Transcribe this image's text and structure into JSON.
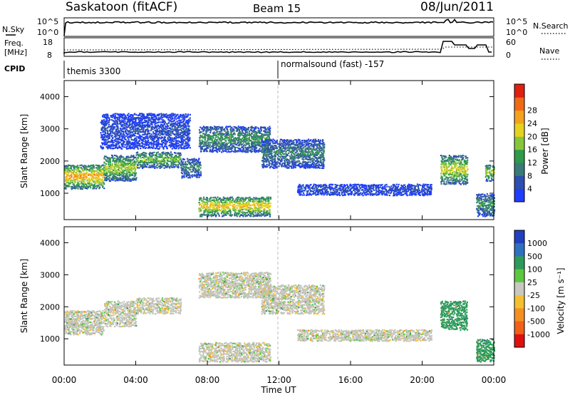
{
  "header": {
    "station": "Saskatoon (fitACF)",
    "beam": "Beam 15",
    "date": "08/Jun/2011"
  },
  "noise_panel": {
    "left_label": "N.Sky",
    "left_ticks": [
      "10^5",
      "10^0"
    ],
    "right_ticks": [
      "10^5",
      "10^0"
    ],
    "right_label": "N.Search"
  },
  "freq_panel": {
    "left_label_line1": "Freq.",
    "left_label_line2": "[MHz]",
    "left_ticks": [
      "18",
      "8"
    ],
    "right_ticks": [
      "60",
      "0"
    ],
    "right_label": "Nave"
  },
  "cpid": {
    "label": "CPID",
    "entries": [
      {
        "text": "themis 3300",
        "time_h": 0.1
      },
      {
        "text": "normalsound (fast) -157",
        "time_h": 12.0
      }
    ]
  },
  "chart_data": [
    {
      "type": "heatmap",
      "quantity": "Power",
      "ylabel": "Slant Range [km]",
      "ylim": [
        180,
        4500
      ],
      "yticks": [
        "1000",
        "2000",
        "3000",
        "4000"
      ],
      "xlim": [
        0,
        24
      ],
      "colorbar": {
        "label": "Power [dB]",
        "ticks": [
          "4",
          "8",
          "12",
          "16",
          "20",
          "24",
          "28"
        ],
        "colors": [
          "#1f3dff",
          "#2c4fb0",
          "#3a7a78",
          "#2e9a4a",
          "#86c63c",
          "#e6d21e",
          "#f4a21c",
          "#f06a16",
          "#e02010"
        ]
      },
      "echo_regions": [
        {
          "t0": 0.0,
          "t1": 2.2,
          "r0": 1150,
          "r1": 1900,
          "core": 24
        },
        {
          "t0": 2.2,
          "t1": 4.0,
          "r0": 1400,
          "r1": 2200,
          "core": 18
        },
        {
          "t0": 4.0,
          "t1": 6.5,
          "r0": 1800,
          "r1": 2300,
          "core": 16
        },
        {
          "t0": 6.5,
          "t1": 7.6,
          "r0": 1500,
          "r1": 2100,
          "core": 10
        },
        {
          "t0": 2.0,
          "t1": 7.0,
          "r0": 2400,
          "r1": 3500,
          "core": 5
        },
        {
          "t0": 7.5,
          "t1": 11.5,
          "r0": 2300,
          "r1": 3100,
          "core": 12
        },
        {
          "t0": 11.0,
          "t1": 14.5,
          "r0": 1800,
          "r1": 2700,
          "core": 10
        },
        {
          "t0": 7.5,
          "t1": 11.5,
          "r0": 300,
          "r1": 900,
          "core": 22
        },
        {
          "t0": 13.0,
          "t1": 20.5,
          "r0": 950,
          "r1": 1300,
          "core": 5
        },
        {
          "t0": 21.0,
          "t1": 22.5,
          "r0": 1300,
          "r1": 2200,
          "core": 20
        },
        {
          "t0": 23.5,
          "t1": 24.0,
          "r0": 1400,
          "r1": 1900,
          "core": 18
        },
        {
          "t0": 23.0,
          "t1": 24.0,
          "r0": 300,
          "r1": 1000,
          "core": 12
        }
      ]
    },
    {
      "type": "heatmap",
      "quantity": "Velocity",
      "ylabel": "Slant Range [km]",
      "ylim": [
        180,
        4500
      ],
      "yticks": [
        "1000",
        "2000",
        "3000",
        "4000"
      ],
      "xlim": [
        0,
        24
      ],
      "xticks": [
        "00:00",
        "04:00",
        "08:00",
        "12:00",
        "16:00",
        "20:00",
        "00:00"
      ],
      "xlabel": "Time UT",
      "colorbar": {
        "label": "Velocity [m s⁻¹]",
        "ticks": [
          "1000",
          "500",
          "100",
          "25",
          "-25",
          "-100",
          "-500",
          "-1000"
        ],
        "colors": [
          "#2040c0",
          "#3070c0",
          "#2e9a5a",
          "#5cc840",
          "#c8c8c0",
          "#f4c030",
          "#f49020",
          "#f06018",
          "#e01010"
        ]
      },
      "ground_scatter_color": "#c3c3bc",
      "echo_regions": [
        {
          "t0": 0.0,
          "t1": 2.2,
          "r0": 1150,
          "r1": 1900,
          "vel": 0
        },
        {
          "t0": 2.2,
          "t1": 4.0,
          "r0": 1400,
          "r1": 2200,
          "vel": 0
        },
        {
          "t0": 4.0,
          "t1": 6.5,
          "r0": 1800,
          "r1": 2300,
          "vel": 0
        },
        {
          "t0": 7.5,
          "t1": 11.5,
          "r0": 2300,
          "r1": 3100,
          "vel": 0
        },
        {
          "t0": 11.0,
          "t1": 14.5,
          "r0": 1800,
          "r1": 2700,
          "vel": 0
        },
        {
          "t0": 7.5,
          "t1": 11.5,
          "r0": 300,
          "r1": 900,
          "vel": 0
        },
        {
          "t0": 13.0,
          "t1": 20.5,
          "r0": 950,
          "r1": 1300,
          "vel": 0
        },
        {
          "t0": 21.0,
          "t1": 22.5,
          "r0": 1300,
          "r1": 2200,
          "vel": 150
        },
        {
          "t0": 23.0,
          "t1": 24.0,
          "r0": 300,
          "r1": 1000,
          "vel": 150
        }
      ]
    }
  ]
}
